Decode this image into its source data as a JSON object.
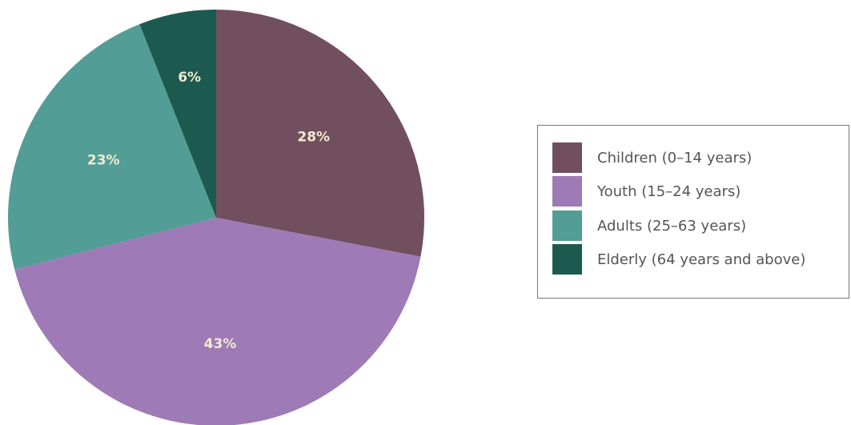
{
  "chart_data": {
    "type": "pie",
    "title": "",
    "start_angle_deg": 0,
    "direction": "clockwise",
    "slices": [
      {
        "label": "Children (0–14 years)",
        "value": 28,
        "display": "28%",
        "color": "#714f5e"
      },
      {
        "label": "Youth (15–24 years)",
        "value": 43,
        "display": "43%",
        "color": "#9e7ab6"
      },
      {
        "label": "Adults (25–63 years)",
        "value": 23,
        "display": "23%",
        "color": "#529d95"
      },
      {
        "label": "Elderly (64 years and above)",
        "value": 6,
        "display": "6%",
        "color": "#1c5a4f"
      }
    ],
    "legend_position": "right"
  }
}
